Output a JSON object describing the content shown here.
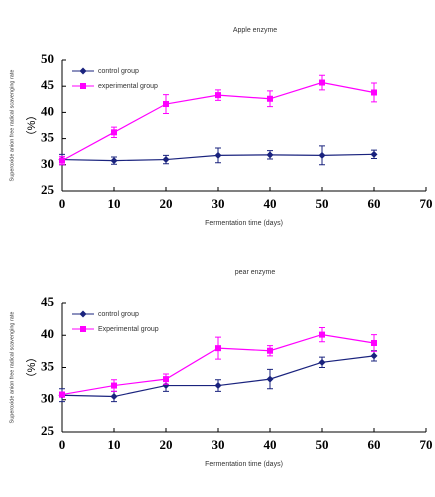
{
  "chart_data": [
    {
      "type": "line",
      "title": "Apple enzyme",
      "ylabel": "Superoxide anion free radical scavenging rate",
      "yunit": "（%）",
      "xlabel": "Fermentation time (days)",
      "x": [
        0,
        10,
        20,
        30,
        40,
        50,
        60
      ],
      "series": [
        {
          "name": "control group",
          "color": "#1a237e",
          "marker": "diamond",
          "values": [
            31.0,
            30.8,
            31.0,
            31.8,
            31.9,
            31.8,
            32.0
          ],
          "errors": [
            1.0,
            0.7,
            0.8,
            1.4,
            0.8,
            1.8,
            0.8
          ]
        },
        {
          "name": "experimental group",
          "color": "#ff00ff",
          "marker": "square",
          "values": [
            30.8,
            36.2,
            41.6,
            43.3,
            42.6,
            45.7,
            43.8
          ],
          "errors": [
            0.8,
            1.0,
            1.8,
            1.0,
            1.5,
            1.4,
            1.8
          ]
        }
      ],
      "xlim": [
        0,
        70
      ],
      "xticks": [
        0,
        10,
        20,
        30,
        40,
        50,
        60,
        70
      ],
      "ylim": [
        25,
        50
      ],
      "yticks": [
        25,
        30,
        35,
        40,
        45,
        50
      ],
      "legend": "upper-left"
    },
    {
      "type": "line",
      "title": "pear enzyme",
      "ylabel": "Superoxide anion free radical scavenging rate",
      "yunit": "（%）",
      "xlabel": "Fermentation time (days)",
      "x": [
        0,
        10,
        20,
        30,
        40,
        50,
        60
      ],
      "series": [
        {
          "name": "control group",
          "color": "#1a237e",
          "marker": "diamond",
          "values": [
            30.7,
            30.5,
            32.2,
            32.2,
            33.2,
            35.8,
            36.8
          ],
          "errors": [
            1.0,
            0.8,
            0.9,
            0.9,
            1.5,
            0.8,
            0.8
          ]
        },
        {
          "name": "Experimental group",
          "color": "#ff00ff",
          "marker": "square",
          "values": [
            30.8,
            32.2,
            33.2,
            38.0,
            37.6,
            40.1,
            38.8
          ],
          "errors": [
            0.4,
            0.9,
            0.8,
            1.7,
            0.8,
            1.1,
            1.3
          ]
        }
      ],
      "xlim": [
        0,
        70
      ],
      "xticks": [
        0,
        10,
        20,
        30,
        40,
        50,
        60,
        70
      ],
      "ylim": [
        25,
        45
      ],
      "yticks": [
        25,
        30,
        35,
        40,
        45
      ],
      "legend": "upper-left"
    }
  ]
}
